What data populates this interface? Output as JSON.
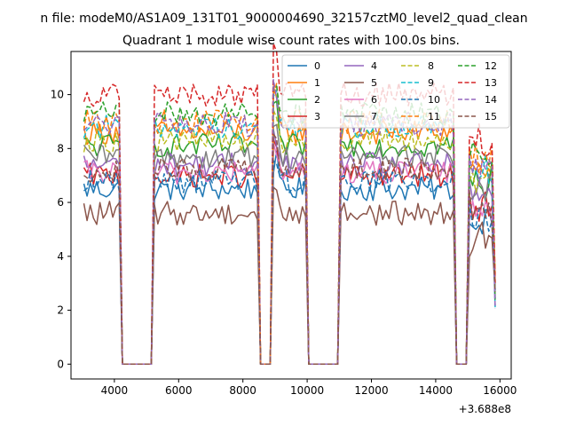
{
  "chart_data": {
    "type": "line",
    "suptitle": "n file: modeM0/AS1A09_131T01_9000004690_32157cztM0_level2_quad_clean",
    "title": "Quadrant 1 module wise count rates with 100.0s bins.",
    "xlabel": "",
    "ylabel": "",
    "x_offset_label": "+3.688e8",
    "x_ticks": [
      "4000",
      "6000",
      "8000",
      "10000",
      "12000",
      "14000",
      "16000"
    ],
    "y_ticks": [
      "0",
      "2",
      "4",
      "6",
      "8",
      "10"
    ],
    "xlim": [
      2650,
      16350
    ],
    "ylim": [
      -0.55,
      11.6
    ],
    "legend_placement": "upper-right",
    "legend_columns": 4,
    "x_units_note_from_offset": "x values are shown relative to offset 3.688e8",
    "segments": [
      {
        "start": 3050,
        "end": 4150
      },
      {
        "start": 5250,
        "end": 8450
      },
      {
        "start": 8950,
        "end": 9950
      },
      {
        "start": 11050,
        "end": 14550
      },
      {
        "start": 15050,
        "end": 15850
      }
    ],
    "series": [
      {
        "name": "0",
        "color": "#1f77b4",
        "dash": "solid",
        "level": 6.5
      },
      {
        "name": "1",
        "color": "#ff7f0e",
        "dash": "solid",
        "level": 8.6
      },
      {
        "name": "2",
        "color": "#2ca02c",
        "dash": "solid",
        "level": 8.1
      },
      {
        "name": "3",
        "color": "#d62728",
        "dash": "solid",
        "level": 7.0
      },
      {
        "name": "4",
        "color": "#9467bd",
        "dash": "solid",
        "level": 7.4
      },
      {
        "name": "5",
        "color": "#8c564b",
        "dash": "solid",
        "level": 5.6
      },
      {
        "name": "6",
        "color": "#e377c2",
        "dash": "solid",
        "level": 7.1
      },
      {
        "name": "7",
        "color": "#7f7f7f",
        "dash": "solid",
        "level": 7.7
      },
      {
        "name": "8",
        "color": "#bcbd22",
        "dash": "dashed",
        "level": 8.3
      },
      {
        "name": "9",
        "color": "#17becf",
        "dash": "dashed",
        "level": 8.8
      },
      {
        "name": "10",
        "color": "#1f77b4",
        "dash": "dashed",
        "level": 6.8
      },
      {
        "name": "11",
        "color": "#ff7f0e",
        "dash": "dashed",
        "level": 9.0
      },
      {
        "name": "12",
        "color": "#2ca02c",
        "dash": "dashed",
        "level": 9.3
      },
      {
        "name": "13",
        "color": "#d62728",
        "dash": "dashed",
        "level": 10.0
      },
      {
        "name": "14",
        "color": "#9467bd",
        "dash": "dashed",
        "level": 8.9
      },
      {
        "name": "15",
        "color": "#8c564b",
        "dash": "dashed",
        "level": 7.2
      }
    ]
  }
}
